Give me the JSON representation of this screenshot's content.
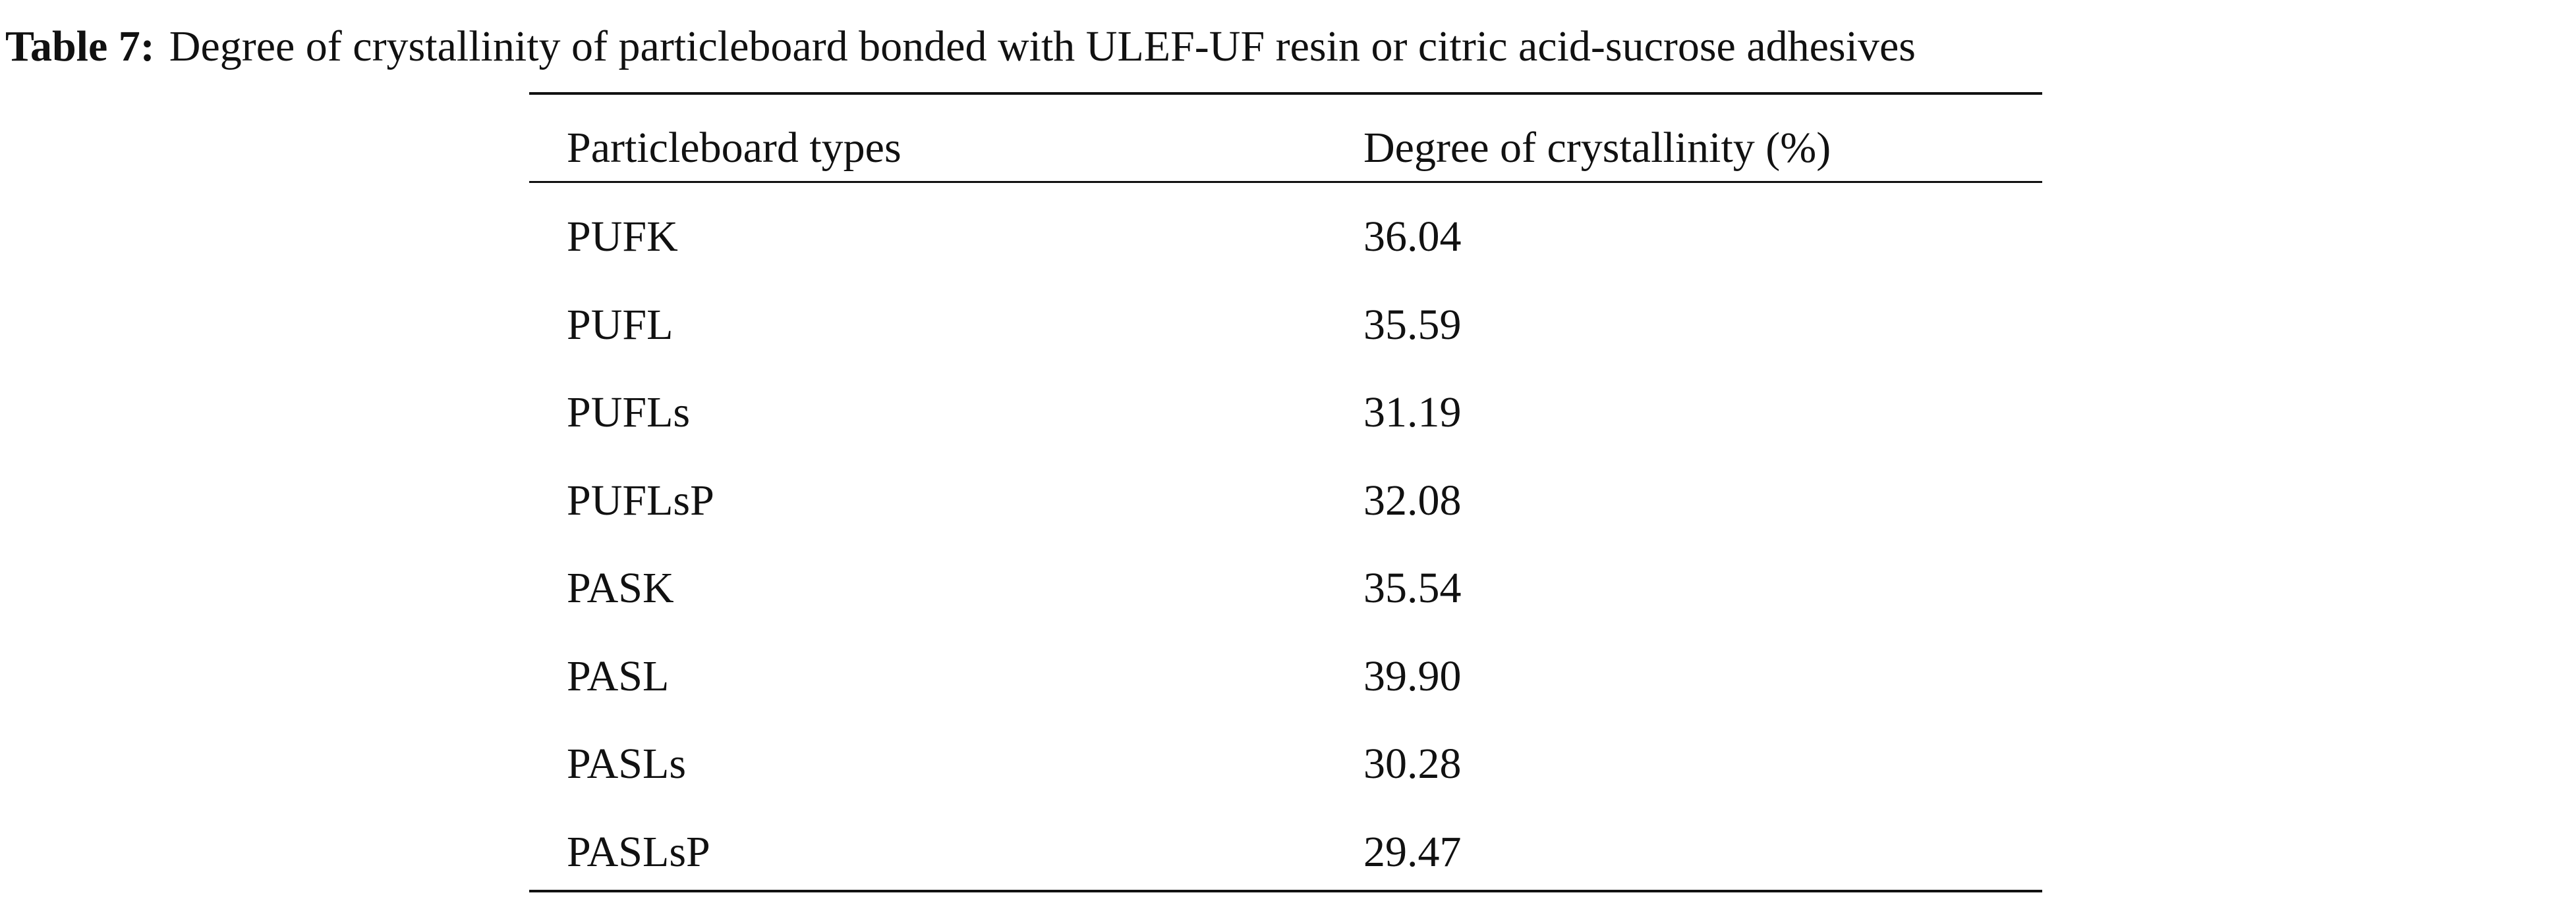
{
  "caption": {
    "label": "Table 7:",
    "text": "Degree of crystallinity of particleboard bonded with ULEF-UF resin or citric acid-sucrose adhesives"
  },
  "table": {
    "header": [
      "Particleboard types",
      "Degree of crystallinity (%)"
    ],
    "rows": [
      [
        "PUFK",
        "36.04"
      ],
      [
        "PUFL",
        "35.59"
      ],
      [
        "PUFLs",
        "31.19"
      ],
      [
        "PUFLsP",
        "32.08"
      ],
      [
        "PASK",
        "35.54"
      ],
      [
        "PASL",
        "39.90"
      ],
      [
        "PASLs",
        "30.28"
      ],
      [
        "PASLsP",
        "29.47"
      ]
    ]
  }
}
